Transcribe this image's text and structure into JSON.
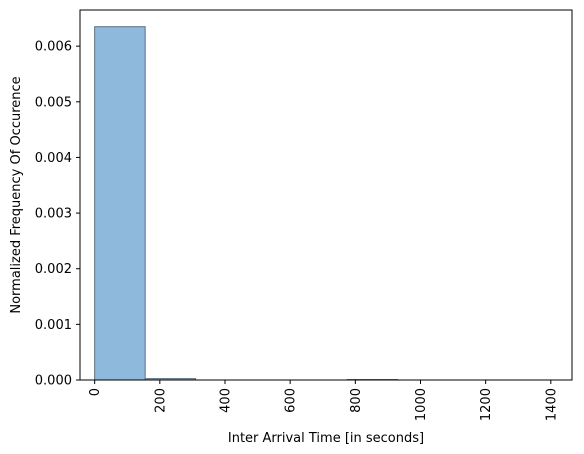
{
  "chart_data": {
    "type": "bar",
    "xlabel": "Inter Arrival Time [in seconds]",
    "ylabel": "Normalized Frequency Of Occurence",
    "xlim": [
      -45,
      1465
    ],
    "ylim": [
      0,
      0.00665
    ],
    "xticks": [
      0,
      200,
      400,
      600,
      800,
      1000,
      1200,
      1400
    ],
    "xtick_labels": [
      "0",
      "200",
      "400",
      "600",
      "800",
      "1000",
      "1200",
      "1400"
    ],
    "yticks": [
      0,
      0.001,
      0.002,
      0.003,
      0.004,
      0.005,
      0.006
    ],
    "ytick_labels": [
      "0.000",
      "0.001",
      "0.002",
      "0.003",
      "0.004",
      "0.005",
      "0.006"
    ],
    "bins": [
      {
        "x0": 0,
        "x1": 155,
        "value": 0.00635
      },
      {
        "x0": 155,
        "x1": 310,
        "value": 2.5e-05
      },
      {
        "x0": 310,
        "x1": 465,
        "value": 0
      },
      {
        "x0": 465,
        "x1": 620,
        "value": 0
      },
      {
        "x0": 620,
        "x1": 775,
        "value": 0
      },
      {
        "x0": 775,
        "x1": 930,
        "value": 8e-06
      },
      {
        "x0": 930,
        "x1": 1085,
        "value": 0
      },
      {
        "x0": 1085,
        "x1": 1240,
        "value": 0
      },
      {
        "x0": 1240,
        "x1": 1395,
        "value": 0
      }
    ],
    "bar_color": "#8fb9dc",
    "bar_edge_color": "#5a6e80",
    "grid": false,
    "legend": "none"
  }
}
